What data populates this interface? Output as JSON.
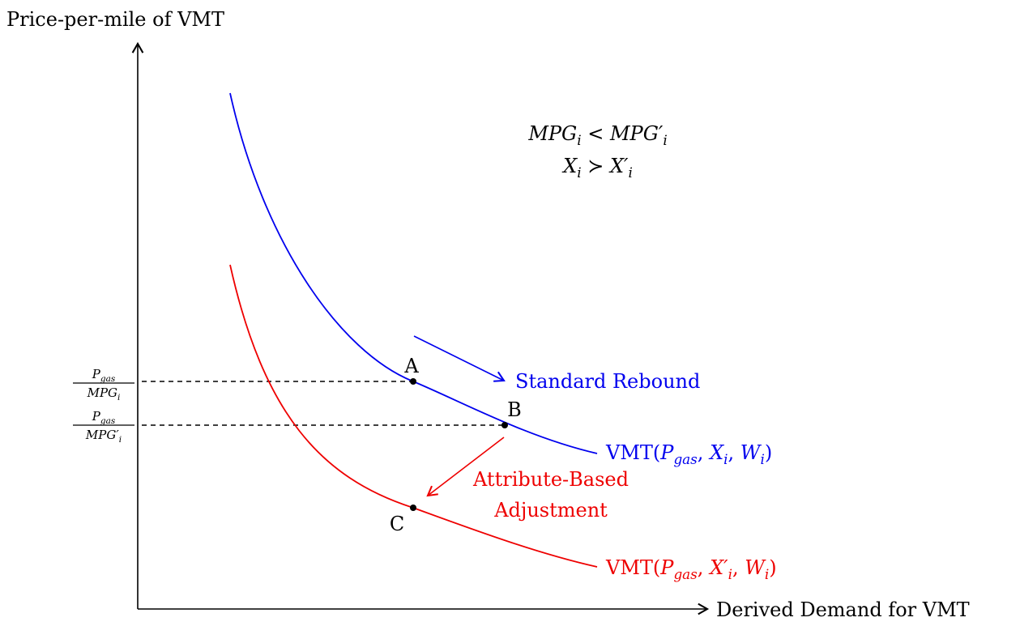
{
  "axes": {
    "y_label": "Price-per-mile of VMT",
    "x_label": "Derived Demand for VMT"
  },
  "conditions": [
    [
      [
        "MPG",
        "it"
      ],
      [
        "i",
        "sub"
      ],
      [
        " < ",
        "rm"
      ],
      [
        "MPG′",
        "it"
      ],
      [
        "i",
        "sub"
      ]
    ],
    [
      [
        "X",
        "it"
      ],
      [
        "i",
        "sub"
      ],
      [
        " ≻ ",
        "rm"
      ],
      [
        "X′",
        "it"
      ],
      [
        "i",
        "sub"
      ]
    ]
  ],
  "price_levels": [
    {
      "numerator": [
        [
          "P",
          "it"
        ],
        [
          "gas",
          "sub"
        ]
      ],
      "denominator": [
        [
          "MPG",
          "it"
        ],
        [
          "i",
          "sub"
        ]
      ]
    },
    {
      "numerator": [
        [
          "P",
          "it"
        ],
        [
          "gas",
          "sub"
        ]
      ],
      "denominator": [
        [
          "MPG′",
          "it"
        ],
        [
          "i",
          "sub"
        ]
      ]
    }
  ],
  "curves": [
    {
      "label": [
        [
          "VMT(",
          "rm"
        ],
        [
          "P",
          "it"
        ],
        [
          "gas",
          "sub"
        ],
        [
          ", ",
          "rm"
        ],
        [
          "X",
          "it"
        ],
        [
          "i",
          "sub"
        ],
        [
          ", ",
          "rm"
        ],
        [
          "W",
          "it"
        ],
        [
          "i",
          "sub"
        ],
        [
          ")",
          "rm"
        ]
      ],
      "color": "#0000ee"
    },
    {
      "label": [
        [
          "VMT(",
          "rm"
        ],
        [
          "P",
          "it"
        ],
        [
          "gas",
          "sub"
        ],
        [
          ", ",
          "rm"
        ],
        [
          "X′",
          "it"
        ],
        [
          "i",
          "sub"
        ],
        [
          ", ",
          "rm"
        ],
        [
          "W",
          "it"
        ],
        [
          "i",
          "sub"
        ],
        [
          ")",
          "rm"
        ]
      ],
      "color": "#ee0000"
    }
  ],
  "points": [
    "A",
    "B",
    "C"
  ],
  "effects": {
    "standard": "Standard Rebound",
    "attribute": [
      "Attribute-Based",
      "Adjustment"
    ]
  }
}
